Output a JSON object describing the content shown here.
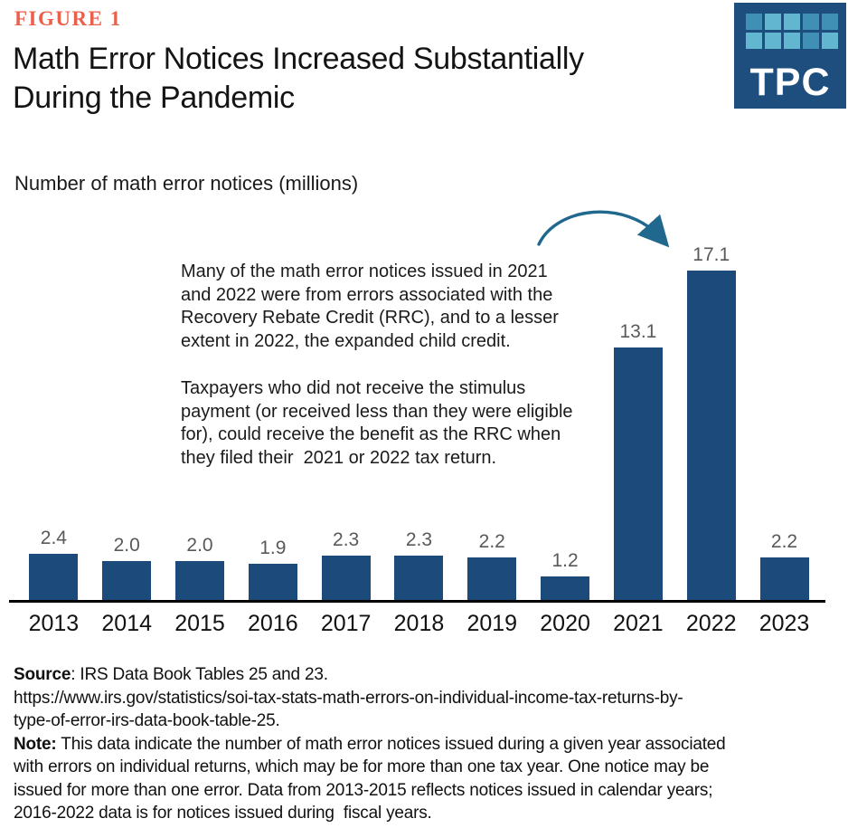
{
  "header": {
    "figure_label": "FIGURE 1",
    "title": "Math Error Notices Increased Substantially\nDuring the Pandemic",
    "subtitle": "Number of math error notices (millions)"
  },
  "logo": {
    "text": "TPC",
    "background": "#1D4E7E",
    "grid": [
      [
        "#4090B5",
        "#62B6CF",
        "#62B6CF",
        "#4090B5",
        "#4090B5"
      ],
      [
        "#62B6CF",
        "#62B6CF",
        "#62B6CF",
        "#4090B5",
        "#62B6CF"
      ]
    ]
  },
  "annotation": {
    "paragraph1": "Many of the math error notices issued in 2021\nand 2022 were from errors associated with the\nRecovery Rebate Credit (RRC), and to a lesser\nextent in 2022, the expanded child credit.",
    "paragraph2": "Taxpayers who did not receive the stimulus\npayment (or received less than they were eligible\nfor), could receive the benefit as the RRC when\nthey filed their  2021 or 2022 tax return."
  },
  "chart_data": {
    "type": "bar",
    "categories": [
      "2013",
      "2014",
      "2015",
      "2016",
      "2017",
      "2018",
      "2019",
      "2020",
      "2021",
      "2022",
      "2023"
    ],
    "values": [
      2.4,
      2.0,
      2.0,
      1.9,
      2.3,
      2.3,
      2.2,
      1.2,
      13.1,
      17.1,
      2.2
    ],
    "value_labels": [
      "2.4",
      "2.0",
      "2.0",
      "1.9",
      "2.3",
      "2.3",
      "2.2",
      "1.2",
      "13.1",
      "17.1",
      "2.2"
    ],
    "title": "Math Error Notices Increased Substantially During the Pandemic",
    "xlabel": "",
    "ylabel": "Number of math error notices (millions)",
    "ylim": [
      0,
      18
    ],
    "grid": "off",
    "legend": "none",
    "bar_color": "#1B4A7B",
    "value_label_color": "#595959",
    "axis_color": "#000000",
    "arrow_color": "#20688E",
    "annotation_arrow": "curved arrow pointing from annotation text to the 2022 bar (17.1)"
  },
  "footer": {
    "source_label": "Source",
    "source_text": ": IRS Data Book Tables 25 and 23.",
    "source_url": "https://www.irs.gov/statistics/soi-tax-stats-math-errors-on-individual-income-tax-returns-by-\ntype-of-error-irs-data-book-table-25.",
    "note_label": "Note:",
    "note_text": " This data indicate the number of math error notices issued during a given year associated\nwith errors on individual returns, which may be for more than one tax year. One notice may be\nissued for more than one error. Data from 2013-2015 reflects notices issued in calendar years;\n2016-2022 data is for notices issued during  fiscal years."
  }
}
